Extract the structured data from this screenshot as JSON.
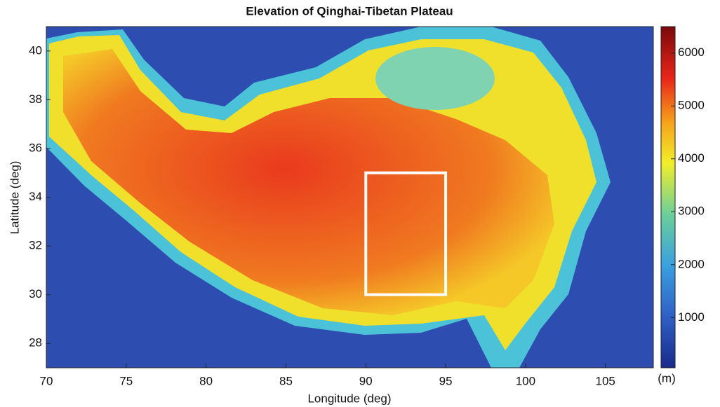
{
  "chart_data": {
    "type": "elevation-map",
    "title": "Elevation of Qinghai-Tibetan Plateau",
    "xlabel": "Longitude (deg)",
    "ylabel": "Latitude (deg)",
    "xlim": [
      70,
      108
    ],
    "xticks": [
      70,
      75,
      80,
      85,
      90,
      95,
      100,
      105
    ],
    "ylim": [
      27,
      41
    ],
    "yticks": [
      28,
      30,
      32,
      34,
      36,
      38,
      40
    ],
    "colorbar": {
      "label": "(m)",
      "clim": [
        50,
        6500
      ],
      "ticks": [
        1000,
        2000,
        3000,
        4000,
        5000,
        6000
      ]
    },
    "region": {
      "lon": [
        90,
        95
      ],
      "lat": [
        30,
        35
      ],
      "color": "#ffffff"
    }
  }
}
